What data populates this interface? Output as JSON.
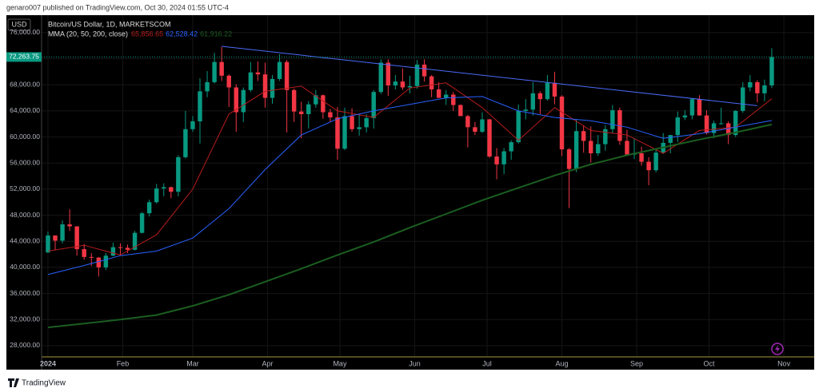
{
  "header": "genaro007 published on TradingView.com, Oct 30, 2024 01:55 UTC-4",
  "footer": "TradingView",
  "chart_data": {
    "type": "candlestick",
    "title": "Bitcoin/US Dollar, 1D, MARKETSCOM",
    "subtitle": "MMA (20, 50, 200, close)",
    "currency": "USD",
    "up_color": "#089981",
    "down_color": "#f23645",
    "grid": true,
    "ylim": [
      26280,
      78680
    ],
    "yticks": [
      {
        "value": 28000,
        "label": "28,000.00"
      },
      {
        "value": 32000,
        "label": "32,000.00"
      },
      {
        "value": 36000,
        "label": "36,000.00"
      },
      {
        "value": 40000,
        "label": "40,000.00"
      },
      {
        "value": 44000,
        "label": "44,000.00"
      },
      {
        "value": 48000,
        "label": "48,000.00"
      },
      {
        "value": 52000,
        "label": "52,000.00"
      },
      {
        "value": 56000,
        "label": "56,000.00"
      },
      {
        "value": 60000,
        "label": "60,000.00"
      },
      {
        "value": 64000,
        "label": "64,000.00"
      },
      {
        "value": 68000,
        "label": "68,000.00"
      },
      {
        "value": 72000,
        "label": "72,000.00"
      },
      {
        "value": 76000,
        "label": "76,000.00"
      }
    ],
    "xlim": [
      -0.88,
      105.86
    ],
    "xticks": [
      {
        "value": 0,
        "label": "2024"
      },
      {
        "value": 10.33,
        "label": "Feb"
      },
      {
        "value": 20,
        "label": "Mar"
      },
      {
        "value": 30.33,
        "label": "Apr"
      },
      {
        "value": 40.33,
        "label": "May"
      },
      {
        "value": 50.67,
        "label": "Jun"
      },
      {
        "value": 60.67,
        "label": "Jul"
      },
      {
        "value": 71,
        "label": "Aug"
      },
      {
        "value": 81.33,
        "label": "Sep"
      },
      {
        "value": 91.33,
        "label": "Oct"
      },
      {
        "value": 101.67,
        "label": "Nov"
      }
    ],
    "last_price": {
      "value": 72263.75,
      "label": "72,263.75"
    },
    "candles": [
      [
        42300,
        45500,
        42200,
        44900
      ],
      [
        44900,
        44900,
        42600,
        44100
      ],
      [
        44100,
        47200,
        43700,
        46600
      ],
      [
        46600,
        48900,
        45600,
        46300
      ],
      [
        46300,
        46300,
        41800,
        42800
      ],
      [
        42800,
        43600,
        41200,
        41600
      ],
      [
        41600,
        42200,
        40200,
        41500
      ],
      [
        41500,
        41600,
        38600,
        40000
      ],
      [
        40000,
        42200,
        39600,
        41800
      ],
      [
        41800,
        43800,
        41700,
        43100
      ],
      [
        43100,
        43700,
        41900,
        43000
      ],
      [
        43000,
        43500,
        42200,
        42700
      ],
      [
        42700,
        45600,
        42600,
        45300
      ],
      [
        45300,
        48500,
        45200,
        48300
      ],
      [
        48300,
        50400,
        47800,
        50000
      ],
      [
        50000,
        52800,
        49800,
        52100
      ],
      [
        52100,
        52900,
        50900,
        52300
      ],
      [
        52300,
        52400,
        50600,
        51600
      ],
      [
        51600,
        57200,
        50900,
        56900
      ],
      [
        56900,
        64000,
        56700,
        61200
      ],
      [
        61200,
        63200,
        60800,
        62400
      ],
      [
        62400,
        69000,
        59000,
        67000
      ],
      [
        67000,
        70100,
        66100,
        68400
      ],
      [
        68400,
        72900,
        68200,
        71500
      ],
      [
        71500,
        73800,
        68600,
        69400
      ],
      [
        69400,
        69600,
        64600,
        67600
      ],
      [
        67600,
        68100,
        60800,
        63800
      ],
      [
        63800,
        67600,
        62300,
        67200
      ],
      [
        67200,
        71500,
        66900,
        69900
      ],
      [
        69900,
        71600,
        68600,
        69600
      ],
      [
        69600,
        71400,
        64500,
        66000
      ],
      [
        66000,
        69500,
        65100,
        68900
      ],
      [
        68900,
        72700,
        68600,
        71500
      ],
      [
        71500,
        71800,
        60700,
        67200
      ],
      [
        67200,
        67400,
        62300,
        63900
      ],
      [
        63900,
        65400,
        59800,
        63500
      ],
      [
        63500,
        65500,
        61300,
        65000
      ],
      [
        65000,
        67200,
        64500,
        66400
      ],
      [
        66400,
        66500,
        62800,
        63800
      ],
      [
        63800,
        64300,
        62300,
        63000
      ],
      [
        63000,
        64600,
        56500,
        58200
      ],
      [
        58200,
        64500,
        58000,
        63200
      ],
      [
        63200,
        64400,
        60800,
        61200
      ],
      [
        61200,
        63400,
        60200,
        61500
      ],
      [
        61500,
        63500,
        60700,
        62900
      ],
      [
        62900,
        67200,
        61300,
        66900
      ],
      [
        66900,
        71900,
        66600,
        71400
      ],
      [
        71400,
        71900,
        66300,
        67900
      ],
      [
        67900,
        69500,
        67300,
        68500
      ],
      [
        68500,
        70500,
        67200,
        67600
      ],
      [
        67600,
        69400,
        66700,
        67800
      ],
      [
        67800,
        71800,
        67400,
        71100
      ],
      [
        71100,
        71900,
        68500,
        69300
      ],
      [
        69300,
        69500,
        66100,
        67300
      ],
      [
        67300,
        68400,
        66000,
        66000
      ],
      [
        66000,
        67200,
        64900,
        66500
      ],
      [
        66500,
        66900,
        64000,
        64900
      ],
      [
        64900,
        65000,
        63400,
        63200
      ],
      [
        63200,
        63400,
        58400,
        61500
      ],
      [
        61500,
        62300,
        60300,
        60800
      ],
      [
        60800,
        63800,
        60600,
        62700
      ],
      [
        62700,
        62800,
        56800,
        57000
      ],
      [
        57000,
        58300,
        53500,
        55800
      ],
      [
        55800,
        58300,
        54300,
        57800
      ],
      [
        57800,
        59500,
        56500,
        59200
      ],
      [
        59200,
        65000,
        59000,
        64000
      ],
      [
        64000,
        65800,
        62700,
        64200
      ],
      [
        64200,
        68400,
        63300,
        66700
      ],
      [
        66700,
        67000,
        63500,
        65800
      ],
      [
        65800,
        69500,
        65600,
        68300
      ],
      [
        68300,
        70000,
        65000,
        66200
      ],
      [
        66200,
        66400,
        57100,
        58100
      ],
      [
        58100,
        58300,
        49100,
        55100
      ],
      [
        55100,
        62700,
        54600,
        60900
      ],
      [
        60900,
        61800,
        57600,
        59400
      ],
      [
        59400,
        61600,
        56100,
        57500
      ],
      [
        57500,
        60300,
        57100,
        58900
      ],
      [
        58900,
        61800,
        57900,
        61200
      ],
      [
        61200,
        64900,
        60500,
        64100
      ],
      [
        64100,
        64500,
        58800,
        59400
      ],
      [
        59400,
        61100,
        57700,
        57300
      ],
      [
        57300,
        59800,
        56600,
        57500
      ],
      [
        57500,
        58500,
        55600,
        56200
      ],
      [
        56200,
        56900,
        52600,
        54900
      ],
      [
        54900,
        58000,
        54600,
        57600
      ],
      [
        57600,
        60600,
        57400,
        59100
      ],
      [
        59100,
        60000,
        57500,
        60300
      ],
      [
        60300,
        63900,
        59200,
        63000
      ],
      [
        63000,
        64100,
        62600,
        63300
      ],
      [
        63300,
        65900,
        62700,
        65800
      ],
      [
        65800,
        66400,
        63300,
        63300
      ],
      [
        63300,
        64100,
        60400,
        60600
      ],
      [
        60600,
        62500,
        59800,
        62100
      ],
      [
        62100,
        64500,
        61900,
        62100
      ],
      [
        62100,
        62400,
        58900,
        60300
      ],
      [
        60300,
        64100,
        60000,
        64000
      ],
      [
        64000,
        68400,
        63700,
        67600
      ],
      [
        67600,
        69500,
        67000,
        68400
      ],
      [
        68400,
        68700,
        65300,
        66700
      ],
      [
        66700,
        68800,
        65500,
        67900
      ],
      [
        67900,
        73600,
        67500,
        72263.75
      ]
    ],
    "series": [
      {
        "name": "MMA 20",
        "color": "#b71c1c",
        "last": {
          "value": 65856.65,
          "label": "65,856.65"
        },
        "x": [
          0,
          5,
          10,
          15,
          20,
          25,
          30,
          35,
          40,
          45,
          50,
          55,
          60,
          65,
          70,
          75,
          80,
          85,
          90,
          95,
          100
        ],
        "values": [
          42500,
          43400,
          41900,
          45000,
          52000,
          63500,
          67000,
          67800,
          64000,
          63000,
          67500,
          68300,
          64500,
          59500,
          64500,
          61000,
          60300,
          57500,
          61000,
          61500,
          65856.65
        ]
      },
      {
        "name": "MMA 50",
        "color": "#2962ff",
        "last": {
          "value": 62528.42,
          "label": "62,528.42"
        },
        "x": [
          0,
          5,
          10,
          15,
          20,
          25,
          30,
          35,
          40,
          45,
          50,
          55,
          60,
          65,
          70,
          75,
          80,
          85,
          90,
          95,
          100
        ],
        "values": [
          38900,
          40300,
          41800,
          42500,
          44500,
          49000,
          55000,
          60300,
          62800,
          64000,
          65000,
          66000,
          66200,
          64000,
          63000,
          62500,
          61500,
          59800,
          60500,
          61500,
          62528.42
        ]
      },
      {
        "name": "MMA 200",
        "color": "#1b5e20",
        "last": {
          "value": 61916.22,
          "label": "61,916.22"
        },
        "x": [
          0,
          5,
          10,
          15,
          20,
          25,
          30,
          35,
          40,
          45,
          50,
          55,
          60,
          65,
          70,
          75,
          80,
          85,
          90,
          95,
          100
        ],
        "values": [
          30800,
          31400,
          32000,
          32700,
          34100,
          35800,
          37800,
          39800,
          41900,
          43900,
          46100,
          48200,
          50300,
          52200,
          54100,
          55800,
          57200,
          58400,
          59600,
          60700,
          61916.22
        ]
      }
    ],
    "trendline": {
      "color": "#4a6cf7",
      "x": [
        24,
        98
      ],
      "values": [
        73900,
        64800
      ]
    }
  }
}
